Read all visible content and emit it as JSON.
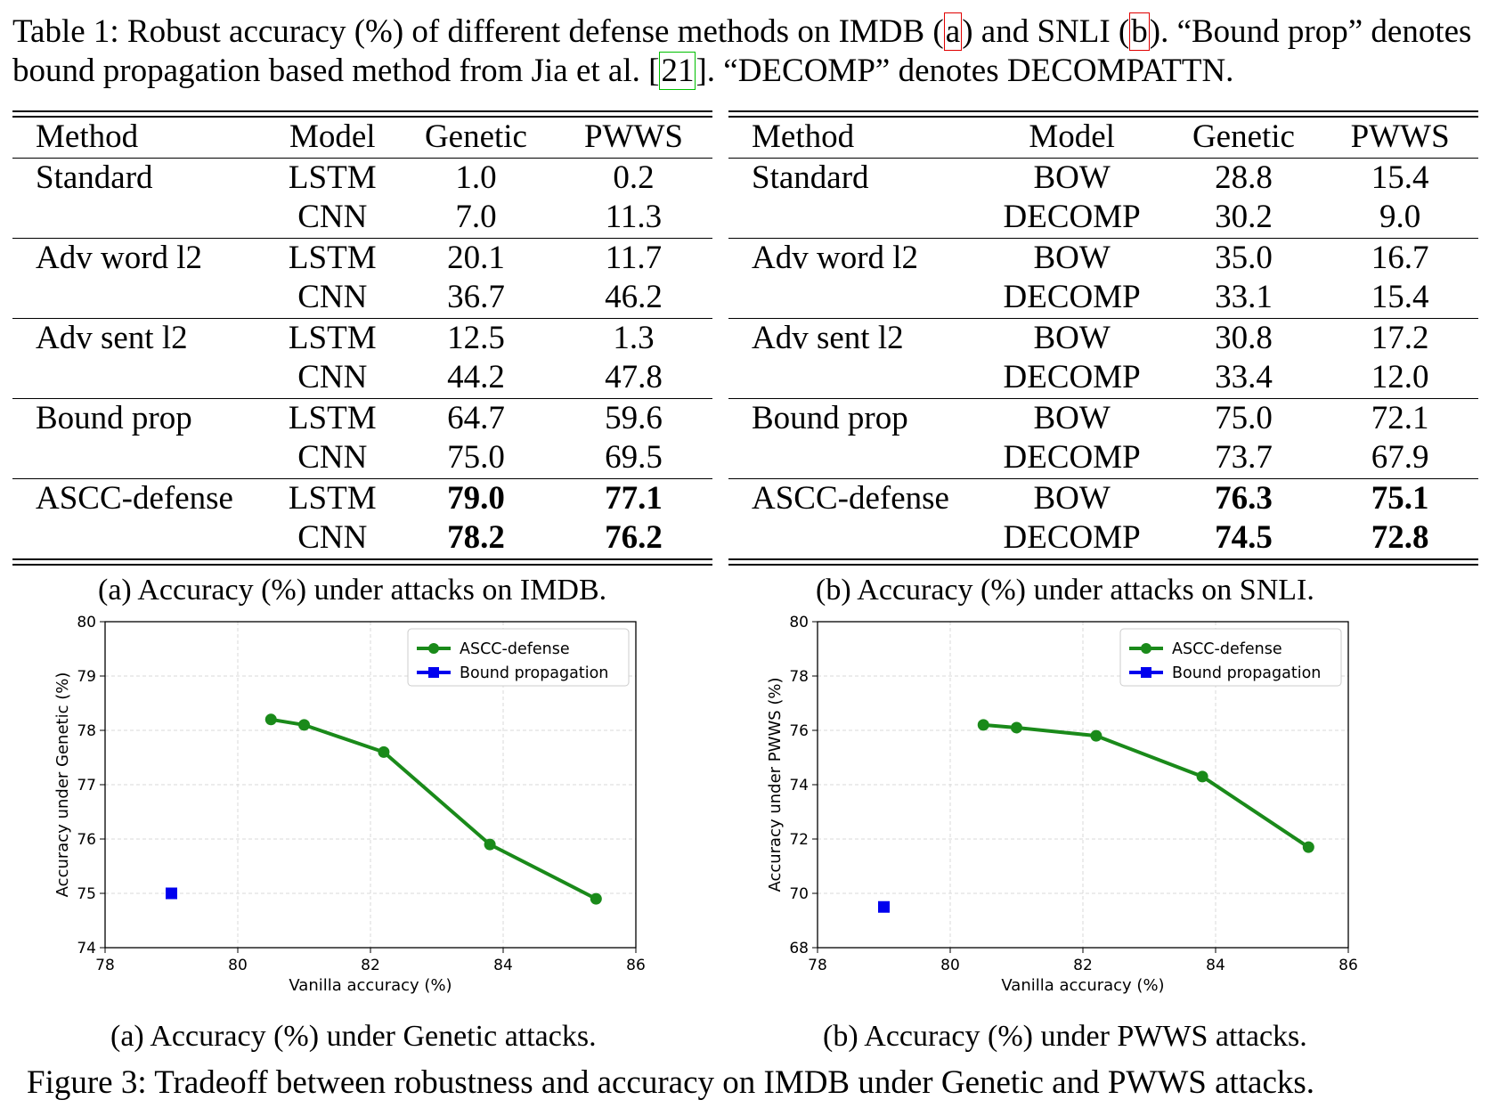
{
  "table_caption": {
    "p1": "Table 1: Robust accuracy (%) of different defense methods on IMDB (",
    "ref_a": "a",
    "p2": ") and SNLI (",
    "ref_b": "b",
    "p3": "). “Bound prop” denotes bound propagation based method from Jia et al. [",
    "cite": "21",
    "p4": "]. “DECOMP” denotes DECOMPATTN."
  },
  "table_a": {
    "headers": [
      "Method",
      "Model",
      "Genetic",
      "PWWS"
    ],
    "groups": [
      {
        "method": "Standard",
        "rows": [
          [
            "LSTM",
            "1.0",
            "0.2"
          ],
          [
            "CNN",
            "7.0",
            "11.3"
          ]
        ]
      },
      {
        "method": "Adv word l2",
        "rows": [
          [
            "LSTM",
            "20.1",
            "11.7"
          ],
          [
            "CNN",
            "36.7",
            "46.2"
          ]
        ]
      },
      {
        "method": "Adv sent l2",
        "rows": [
          [
            "LSTM",
            "12.5",
            "1.3"
          ],
          [
            "CNN",
            "44.2",
            "47.8"
          ]
        ]
      },
      {
        "method": "Bound prop",
        "rows": [
          [
            "LSTM",
            "64.7",
            "59.6"
          ],
          [
            "CNN",
            "75.0",
            "69.5"
          ]
        ]
      },
      {
        "method": "ASCC-defense",
        "rows": [
          [
            "LSTM",
            "79.0",
            "77.1"
          ],
          [
            "CNN",
            "78.2",
            "76.2"
          ]
        ]
      }
    ],
    "caption": "(a) Accuracy (%) under attacks on IMDB."
  },
  "table_b": {
    "headers": [
      "Method",
      "Model",
      "Genetic",
      "PWWS"
    ],
    "groups": [
      {
        "method": "Standard",
        "rows": [
          [
            "BOW",
            "28.8",
            "15.4"
          ],
          [
            "DECOMP",
            "30.2",
            "9.0"
          ]
        ]
      },
      {
        "method": "Adv word l2",
        "rows": [
          [
            "BOW",
            "35.0",
            "16.7"
          ],
          [
            "DECOMP",
            "33.1",
            "15.4"
          ]
        ]
      },
      {
        "method": "Adv sent l2",
        "rows": [
          [
            "BOW",
            "30.8",
            "17.2"
          ],
          [
            "DECOMP",
            "33.4",
            "12.0"
          ]
        ]
      },
      {
        "method": "Bound prop",
        "rows": [
          [
            "BOW",
            "75.0",
            "72.1"
          ],
          [
            "DECOMP",
            "73.7",
            "67.9"
          ]
        ]
      },
      {
        "method": "ASCC-defense",
        "rows": [
          [
            "BOW",
            "76.3",
            "75.1"
          ],
          [
            "DECOMP",
            "74.5",
            "72.8"
          ]
        ]
      }
    ],
    "caption": "(b) Accuracy (%) under attacks on SNLI."
  },
  "chart_data": [
    {
      "type": "line",
      "xlabel": "Vanilla accuracy (%)",
      "ylabel": "Accuracy under Genetic (%)",
      "xlim": [
        78,
        86
      ],
      "ylim": [
        74,
        80
      ],
      "xticks": [
        78,
        80,
        82,
        84,
        86
      ],
      "yticks": [
        74,
        75,
        76,
        77,
        78,
        79,
        80
      ],
      "grid": true,
      "legend_position": "top-right",
      "series": [
        {
          "name": "ASCC-defense",
          "color": "#1a8a1a",
          "marker": "circle",
          "x": [
            80.5,
            81.0,
            82.2,
            83.8,
            85.4
          ],
          "y": [
            78.2,
            78.1,
            77.6,
            75.9,
            74.9
          ]
        },
        {
          "name": "Bound propagation",
          "color": "#0000ee",
          "marker": "square",
          "x": [
            79.0
          ],
          "y": [
            75.0
          ]
        }
      ],
      "caption": "(a) Accuracy (%) under Genetic attacks."
    },
    {
      "type": "line",
      "xlabel": "Vanilla accuracy (%)",
      "ylabel": "Accuracy under PWWS (%)",
      "xlim": [
        78,
        86
      ],
      "ylim": [
        68,
        80
      ],
      "xticks": [
        78,
        80,
        82,
        84,
        86
      ],
      "yticks": [
        68,
        70,
        72,
        74,
        76,
        78,
        80
      ],
      "grid": true,
      "legend_position": "top-right",
      "series": [
        {
          "name": "ASCC-defense",
          "color": "#1a8a1a",
          "marker": "circle",
          "x": [
            80.5,
            81.0,
            82.2,
            83.8,
            85.4
          ],
          "y": [
            76.2,
            76.1,
            75.8,
            74.3,
            71.7
          ]
        },
        {
          "name": "Bound propagation",
          "color": "#0000ee",
          "marker": "square",
          "x": [
            79.0
          ],
          "y": [
            69.5
          ]
        }
      ],
      "caption": "(b) Accuracy (%) under PWWS attacks."
    }
  ],
  "figure_caption": "Figure 3: Tradeoff between robustness and accuracy on IMDB under Genetic and PWWS attacks."
}
